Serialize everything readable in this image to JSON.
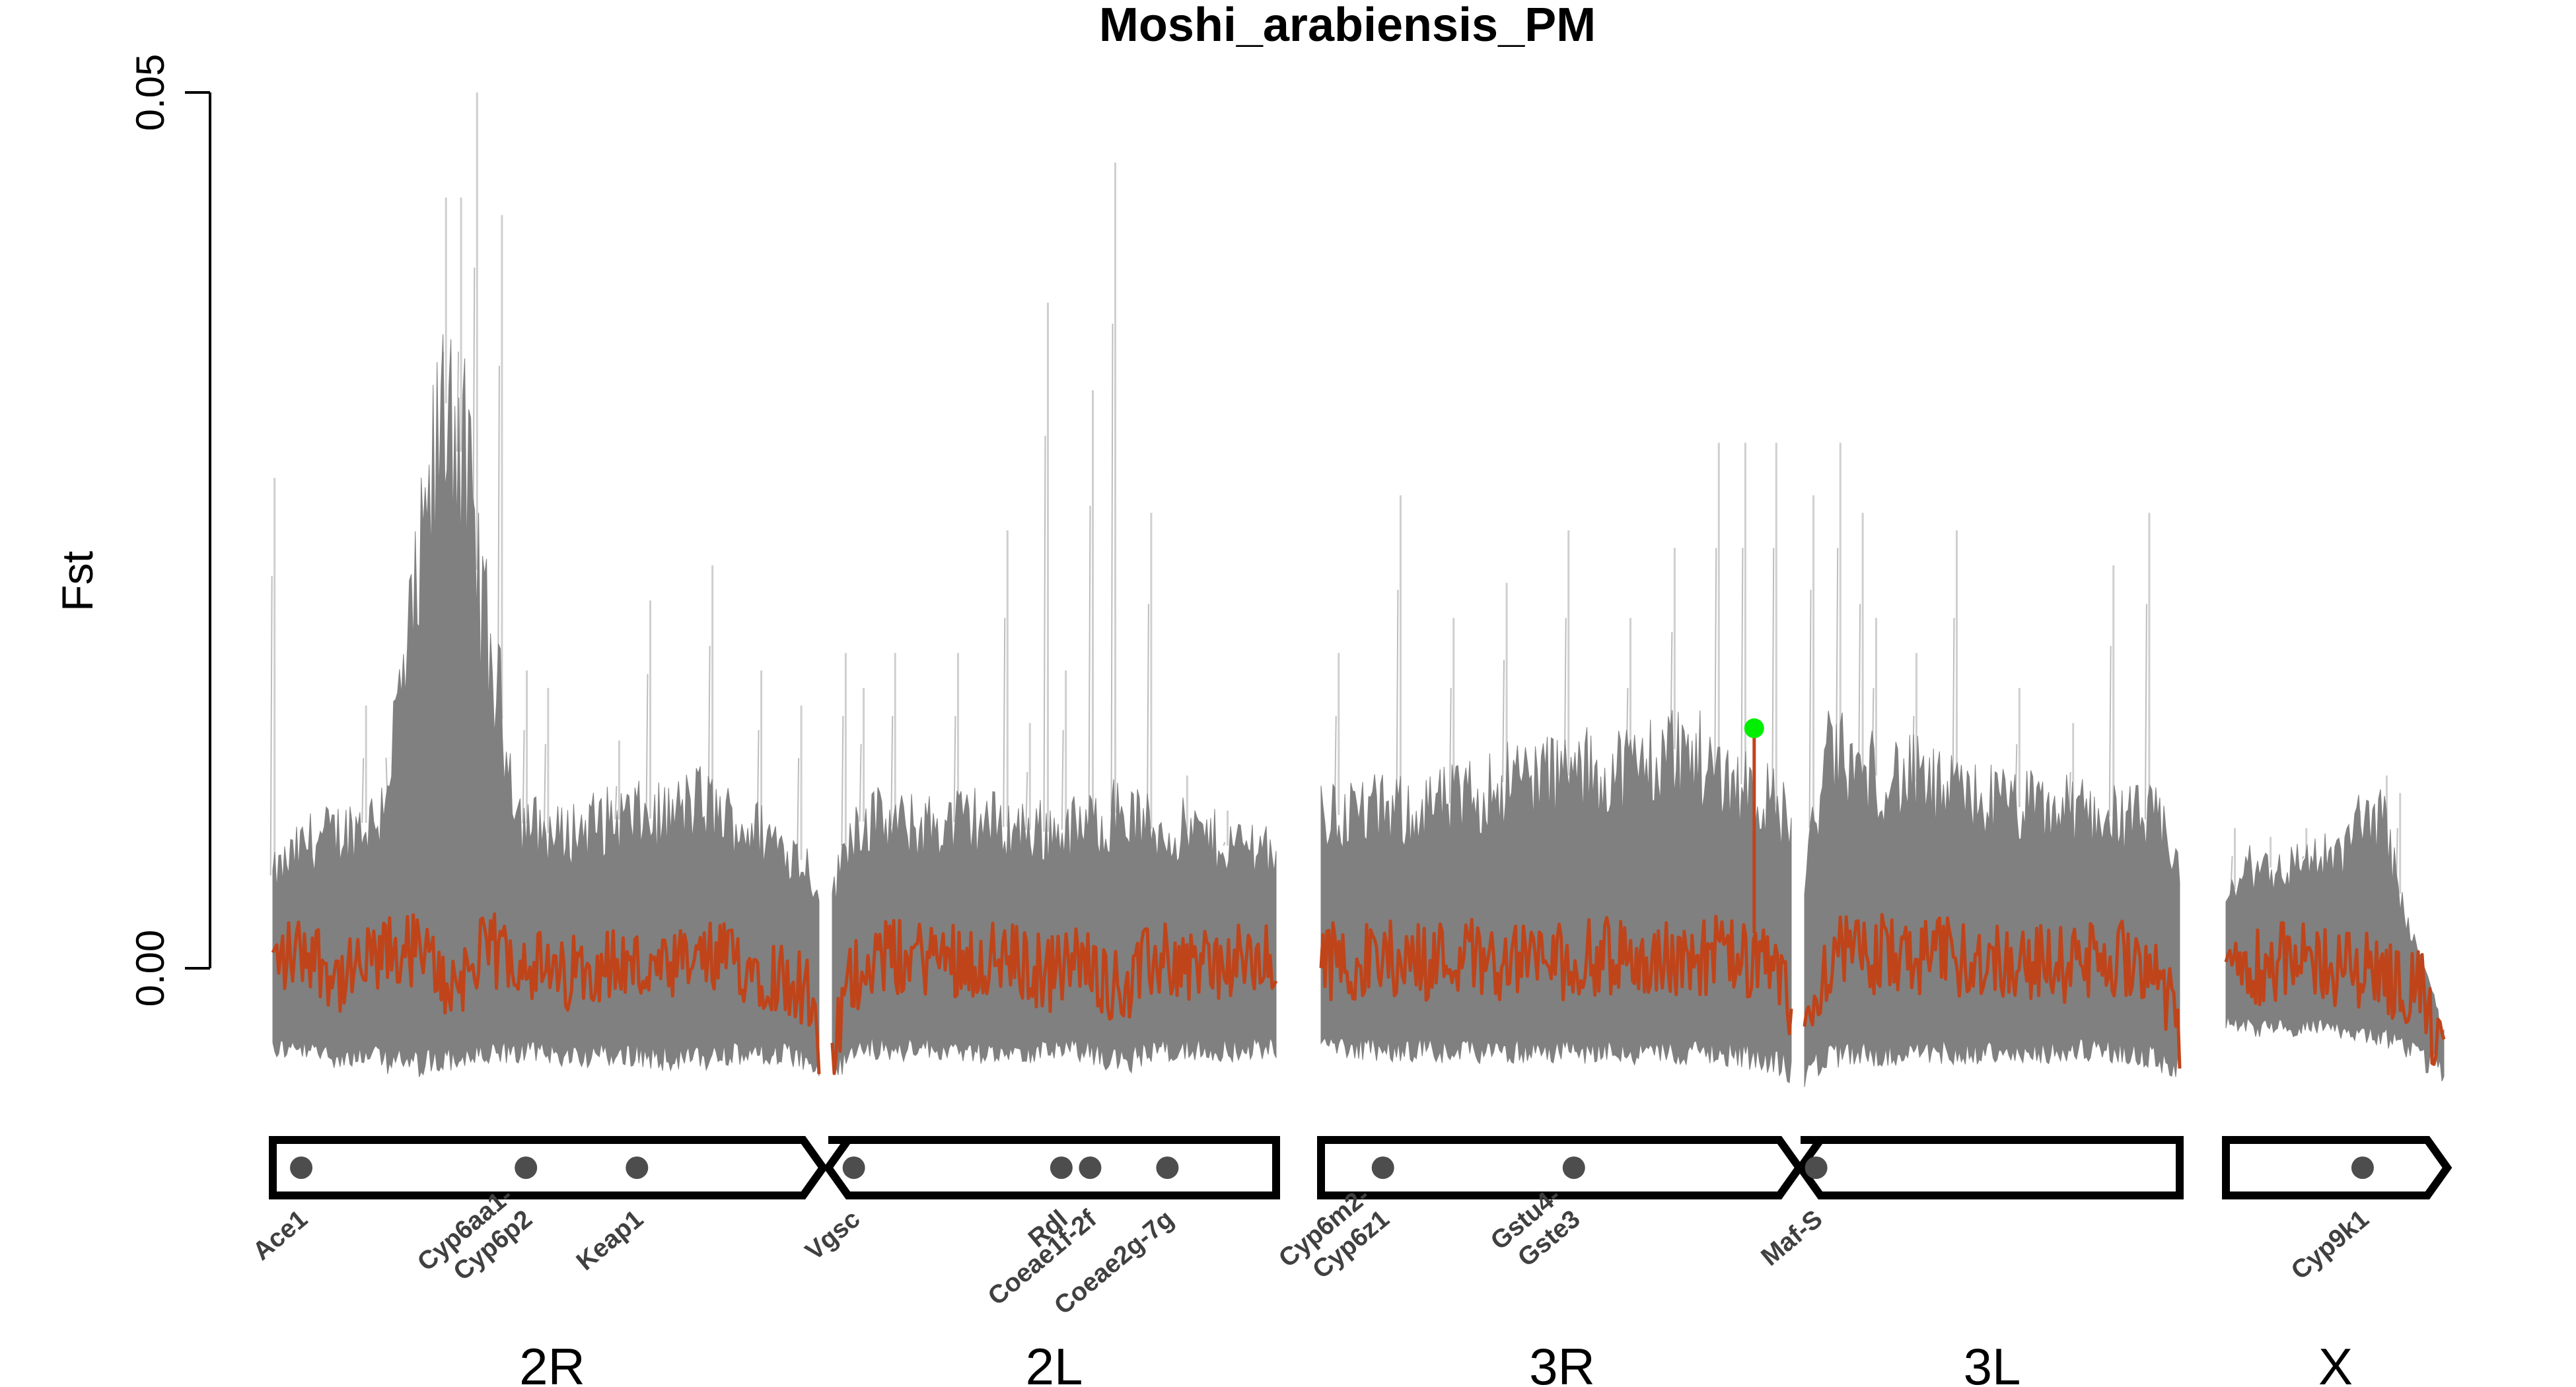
{
  "chart_data": {
    "type": "line",
    "title": "Moshi_arabiensis_PM",
    "ylabel": "Fst",
    "xlabel": "",
    "yticks": [
      "0.00",
      "0.05"
    ],
    "ylim": [
      -0.006,
      0.05
    ],
    "colors": {
      "envelope": "#808080",
      "spike": "#cfcfcf",
      "mean": "#c0441a",
      "highlight": "#00ee00",
      "gene_dot": "#4d4d4d",
      "ideogram": "#000000"
    },
    "chromosomes": [
      {
        "name": "2R",
        "x_range": [
          0,
          61.5
        ],
        "label": "2R",
        "arm_end": "centromere"
      },
      {
        "name": "2L",
        "x_range": [
          0,
          49.4
        ],
        "label": "2L",
        "arm_end": "tel"
      },
      {
        "name": "3R",
        "x_range": [
          0,
          53.2
        ],
        "label": "3R",
        "arm_end": "centromere"
      },
      {
        "name": "3L",
        "x_range": [
          0,
          41.9
        ],
        "label": "3L",
        "arm_end": "tel"
      },
      {
        "name": "X",
        "x_range": [
          0,
          24.4
        ],
        "label": "X",
        "arm_end": "point"
      }
    ],
    "series": [
      {
        "chrom": "2R",
        "x": [
          0,
          4,
          8,
          12,
          16,
          20,
          24,
          28,
          32,
          36,
          40,
          44,
          48,
          52,
          56,
          60,
          61.5
        ],
        "mean": [
          0.0003,
          0.0012,
          -0.0008,
          0.0006,
          0.0011,
          -0.001,
          0.0009,
          0.0008,
          -0.0008,
          0.0004,
          0.0002,
          -0.0005,
          0.0005,
          0.0004,
          -0.0002,
          -0.0011,
          -0.0055
        ],
        "upper": [
          0.0052,
          0.0072,
          0.0078,
          0.0086,
          0.02,
          0.034,
          0.019,
          0.0084,
          0.0075,
          0.0082,
          0.0086,
          0.0085,
          0.0095,
          0.0083,
          0.0075,
          0.006,
          0.0045
        ],
        "lower": [
          -0.0045,
          -0.0048,
          -0.005,
          -0.0052,
          -0.0055,
          -0.0052,
          -0.005,
          -0.0048,
          -0.0049,
          -0.005,
          -0.005,
          -0.0051,
          -0.0052,
          -0.005,
          -0.0049,
          -0.0052,
          -0.006
        ],
        "spikes": [
          [
            0.2,
            0.028
          ],
          [
            10.5,
            0.015
          ],
          [
            13.2,
            0.012
          ],
          [
            19.5,
            0.044
          ],
          [
            21.2,
            0.044
          ],
          [
            23.0,
            0.05
          ],
          [
            25.8,
            0.043
          ],
          [
            28.6,
            0.017
          ],
          [
            31.0,
            0.016
          ],
          [
            39.0,
            0.013
          ],
          [
            42.5,
            0.021
          ],
          [
            49.5,
            0.023
          ],
          [
            55.0,
            0.017
          ],
          [
            59.5,
            0.015
          ]
        ]
      },
      {
        "chrom": "2L",
        "x": [
          0,
          2,
          4,
          8,
          12,
          16,
          20,
          24,
          28,
          32,
          36,
          40,
          44,
          48,
          49.4
        ],
        "mean": [
          -0.005,
          -0.0008,
          0.0007,
          0.0006,
          0.0007,
          0.0005,
          0.0004,
          -0.0003,
          0.0005,
          -0.0012,
          0.0005,
          0.0003,
          0.0002,
          0.0003,
          0.0
        ],
        "upper": [
          0.004,
          0.008,
          0.0085,
          0.008,
          0.0082,
          0.0085,
          0.008,
          0.0078,
          0.008,
          0.009,
          0.0078,
          0.0078,
          0.007,
          0.0072,
          0.0065
        ],
        "lower": [
          -0.006,
          -0.0048,
          -0.0045,
          -0.0047,
          -0.0046,
          -0.0048,
          -0.0047,
          -0.0048,
          -0.0047,
          -0.0055,
          -0.0046,
          -0.0047,
          -0.0047,
          -0.0046,
          -0.0045
        ],
        "spikes": [
          [
            1.5,
            0.018
          ],
          [
            3.5,
            0.016
          ],
          [
            7.0,
            0.018
          ],
          [
            14.0,
            0.018
          ],
          [
            19.5,
            0.025
          ],
          [
            22.0,
            0.014
          ],
          [
            24.0,
            0.038
          ],
          [
            26.0,
            0.017
          ],
          [
            29.0,
            0.033
          ],
          [
            31.5,
            0.046
          ],
          [
            35.5,
            0.026
          ],
          [
            39.5,
            0.011
          ],
          [
            44.0,
            0.009
          ]
        ]
      },
      {
        "chrom": "3R",
        "x": [
          0,
          4,
          8,
          12,
          16,
          20,
          24,
          28,
          32,
          36,
          40,
          44,
          48,
          52,
          53.2
        ],
        "mean": [
          0.0005,
          0.0003,
          0.0006,
          0.0004,
          0.0009,
          0.0004,
          0.0006,
          0.0003,
          0.0007,
          0.0005,
          0.0004,
          0.0008,
          0.0004,
          -0.0005,
          -0.0025
        ],
        "upper": [
          0.0085,
          0.009,
          0.0088,
          0.0092,
          0.0095,
          0.0105,
          0.011,
          0.011,
          0.0112,
          0.0115,
          0.0125,
          0.0115,
          0.0105,
          0.009,
          0.008
        ],
        "lower": [
          -0.0045,
          -0.0046,
          -0.0047,
          -0.0047,
          -0.0048,
          -0.0047,
          -0.0048,
          -0.0048,
          -0.0047,
          -0.005,
          -0.0048,
          -0.0048,
          -0.005,
          -0.0055,
          -0.0058
        ],
        "spikes": [
          [
            2.0,
            0.018
          ],
          [
            9.0,
            0.027
          ],
          [
            15.0,
            0.02
          ],
          [
            21.0,
            0.022
          ],
          [
            28.0,
            0.025
          ],
          [
            35.0,
            0.02
          ],
          [
            40.0,
            0.024
          ],
          [
            45.0,
            0.03
          ],
          [
            48.0,
            0.03
          ],
          [
            51.5,
            0.03
          ]
        ],
        "highlight": {
          "x": 49.0,
          "y": 0.0137
        }
      },
      {
        "chrom": "3L",
        "x": [
          0,
          1.5,
          3,
          6,
          9,
          12,
          15,
          18,
          21,
          24,
          27,
          30,
          33,
          36,
          39,
          41.9
        ],
        "mean": [
          -0.0035,
          -0.001,
          0.001,
          0.0006,
          0.0009,
          0.0004,
          0.0007,
          0.0005,
          0.0006,
          0.0004,
          0.0003,
          0.0002,
          0.0004,
          0.0006,
          0.0005,
          -0.004
        ],
        "upper": [
          0.005,
          0.0095,
          0.0125,
          0.011,
          0.011,
          0.0108,
          0.01,
          0.0098,
          0.0095,
          0.0092,
          0.009,
          0.009,
          0.0088,
          0.0085,
          0.0085,
          0.006
        ],
        "lower": [
          -0.006,
          -0.0055,
          -0.005,
          -0.0049,
          -0.0049,
          -0.0048,
          -0.0048,
          -0.0048,
          -0.0048,
          -0.0047,
          -0.0048,
          -0.0047,
          -0.0047,
          -0.0048,
          -0.005,
          -0.0058
        ],
        "spikes": [
          [
            1.0,
            0.027
          ],
          [
            4.0,
            0.03
          ],
          [
            6.5,
            0.026
          ],
          [
            8.0,
            0.02
          ],
          [
            12.5,
            0.018
          ],
          [
            17.0,
            0.025
          ],
          [
            24.0,
            0.016
          ],
          [
            30.0,
            0.014
          ],
          [
            34.5,
            0.023
          ],
          [
            38.5,
            0.026
          ]
        ]
      },
      {
        "chrom": "X",
        "x": [
          0,
          2,
          4,
          6,
          8,
          10,
          12,
          14,
          16,
          18,
          20,
          21.5,
          23,
          24.4
        ],
        "mean": [
          0.0001,
          0.0005,
          0.0001,
          0.0005,
          0.0002,
          0.0005,
          0.0001,
          -0.0002,
          0.0002,
          -0.0005,
          -0.0012,
          -0.0005,
          -0.0035,
          -0.005
        ],
        "upper": [
          0.0035,
          0.0055,
          0.006,
          0.0055,
          0.006,
          0.0065,
          0.006,
          0.0075,
          0.009,
          0.008,
          0.003,
          0.001,
          -0.001,
          -0.004
        ],
        "lower": [
          -0.003,
          -0.0033,
          -0.0035,
          -0.0034,
          -0.0034,
          -0.0033,
          -0.0035,
          -0.0036,
          -0.0038,
          -0.004,
          -0.0045,
          -0.0048,
          -0.0055,
          -0.0058
        ],
        "spikes": [
          [
            1.0,
            0.008
          ],
          [
            5.0,
            0.0075
          ],
          [
            9.0,
            0.008
          ],
          [
            15.0,
            0.009
          ],
          [
            18.0,
            0.011
          ],
          [
            19.5,
            0.01
          ]
        ]
      }
    ],
    "genes": [
      {
        "name": "Ace1",
        "chrom": "2R",
        "x": 3.2
      },
      {
        "name": "Cyp6aa1-\nCyp6p2",
        "chrom": "2R",
        "x": 28.5
      },
      {
        "name": "Keap1",
        "chrom": "2R",
        "x": 41.0
      },
      {
        "name": "Vgsc",
        "chrom": "2L",
        "x": 2.4
      },
      {
        "name": "Rdl",
        "chrom": "2L",
        "x": 25.5
      },
      {
        "name": "Coeae1f-2f",
        "chrom": "2L",
        "x": 28.7
      },
      {
        "name": "Coeae2g-7g",
        "chrom": "2L",
        "x": 37.3
      },
      {
        "name": "Cyp6m2-\nCyp6z1",
        "chrom": "3R",
        "x": 7.0
      },
      {
        "name": "Gstu4-\nGste3",
        "chrom": "3R",
        "x": 28.6
      },
      {
        "name": "Maf-S",
        "chrom": "3L",
        "x": 1.3
      },
      {
        "name": "Cyp9k1",
        "chrom": "X",
        "x": 15.3
      }
    ],
    "legend": "none",
    "grid": false
  }
}
